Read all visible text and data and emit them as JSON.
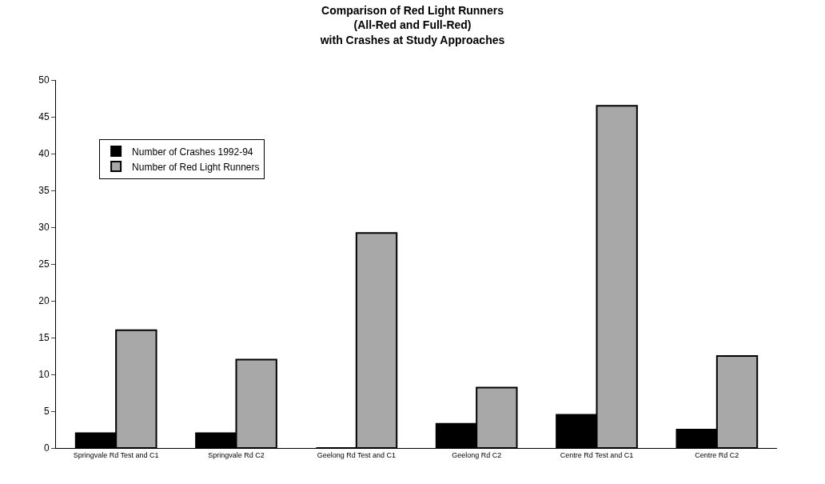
{
  "chart_data": {
    "type": "bar",
    "title": "Comparison of Red Light Runners\n(All-Red and Full-Red)\nwith Crashes at Study Approaches",
    "categories": [
      "Springvale Rd Test and C1",
      "Springvale Rd C2",
      "Geelong Rd Test and C1",
      "Geelong Rd C2",
      "Centre Rd Test and C1",
      "Centre Rd C2"
    ],
    "series": [
      {
        "name": "Number of Crashes 1992-94",
        "color": "#000000",
        "values": [
          2,
          2,
          0,
          3.3,
          4.5,
          2.5
        ]
      },
      {
        "name": "Number of Red Light Runners",
        "color": "#a8a8a8",
        "values": [
          16,
          12,
          29.2,
          8.2,
          46.5,
          12.5
        ]
      }
    ],
    "ylim": [
      0,
      50
    ],
    "yticks": [
      0,
      5,
      10,
      15,
      20,
      25,
      30,
      35,
      40,
      45,
      50
    ],
    "grid": false,
    "legend": "top left"
  }
}
